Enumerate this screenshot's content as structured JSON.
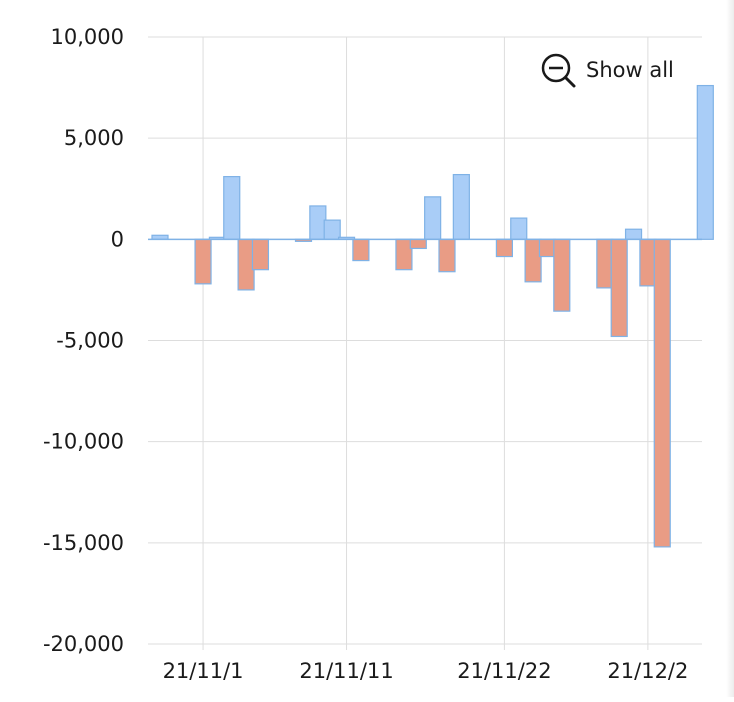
{
  "chart_data": {
    "type": "bar",
    "title": "",
    "xlabel": "",
    "ylabel": "",
    "ylim": [
      -20000,
      10000
    ],
    "yticks": [
      10000,
      5000,
      0,
      -5000,
      -10000,
      -15000,
      -20000
    ],
    "ytick_labels": [
      "10,000",
      "5,000",
      "0",
      "-5,000",
      "-10,000",
      "-15,000",
      "-20,000"
    ],
    "xtick_labels": [
      "21/11/1",
      "21/11/11",
      "21/11/22",
      "21/12/2"
    ],
    "xtick_dates": [
      "2021-11-01",
      "2021-11-11",
      "2021-11-22",
      "2021-12-02"
    ],
    "grid": true,
    "legend": "none",
    "colors": {
      "positive_fill": "#a9cdf7",
      "positive_stroke": "#7fb2e6",
      "negative_fill": "#e99c85",
      "negative_stroke": "#7fb2e6",
      "grid": "#dddddd",
      "zero_line": "#7fb2e6"
    },
    "x": [
      "2021-10-29",
      "2021-11-01",
      "2021-11-02",
      "2021-11-03",
      "2021-11-04",
      "2021-11-05",
      "2021-11-08",
      "2021-11-09",
      "2021-11-10",
      "2021-11-11",
      "2021-11-12",
      "2021-11-15",
      "2021-11-16",
      "2021-11-17",
      "2021-11-18",
      "2021-11-19",
      "2021-11-22",
      "2021-11-23",
      "2021-11-24",
      "2021-11-25",
      "2021-11-26",
      "2021-11-29",
      "2021-11-30",
      "2021-12-01",
      "2021-12-02",
      "2021-12-03",
      "2021-12-06"
    ],
    "values": [
      200,
      -2200,
      100,
      3100,
      -2500,
      -1500,
      -100,
      1650,
      950,
      100,
      -1050,
      -1500,
      -450,
      2100,
      -1600,
      3200,
      -850,
      1050,
      -2100,
      -850,
      -3550,
      -2400,
      -4800,
      500,
      -2300,
      -15200,
      7600
    ]
  },
  "controls": {
    "show_all_label": "Show all",
    "show_all_icon": "zoom-out-icon"
  }
}
